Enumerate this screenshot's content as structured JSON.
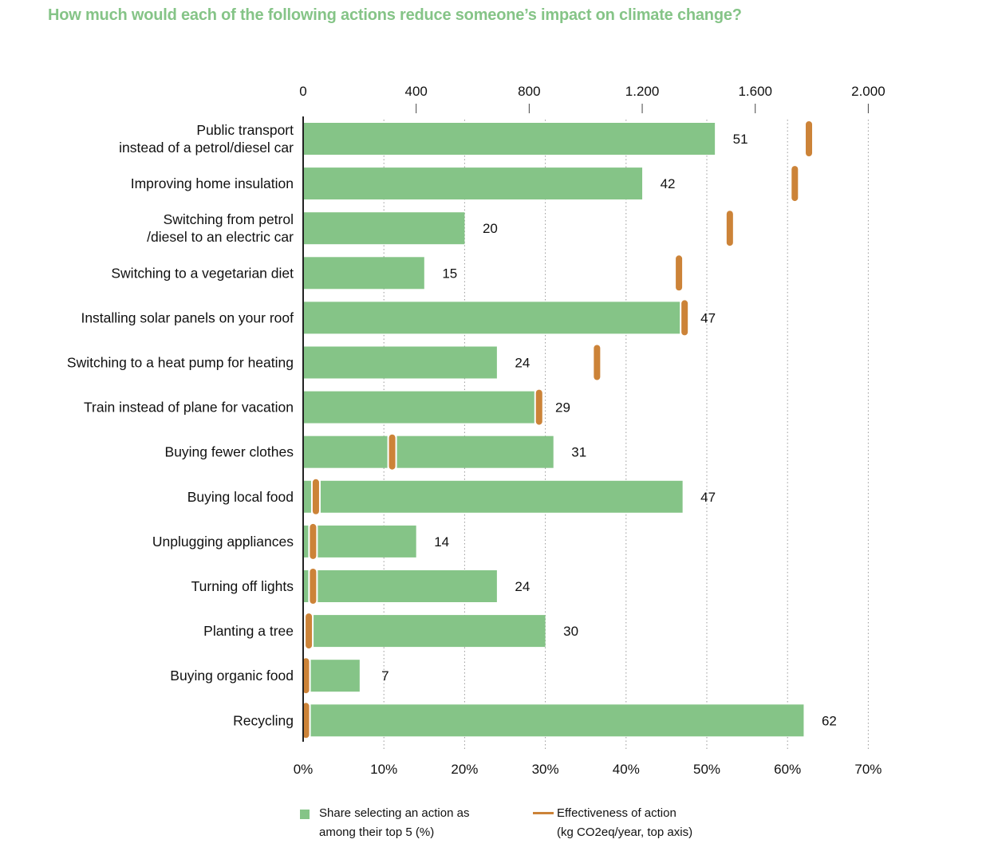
{
  "colors": {
    "bar": "#85c487",
    "marker": "#cc8338",
    "title": "#85c487",
    "grid": "#9a9a9a"
  },
  "chart_data": {
    "type": "bar",
    "orientation": "horizontal",
    "title": "How much would each of the following actions reduce someone’s impact on climate change?",
    "categories": [
      [
        "Public transport",
        "instead of a petrol/diesel car"
      ],
      [
        "Improving home insulation"
      ],
      [
        "Switching from petrol",
        "/diesel to an electric car"
      ],
      [
        "Switching to a vegetarian diet"
      ],
      [
        "Installing solar panels on your roof"
      ],
      [
        "Switching to a heat pump for heating"
      ],
      [
        "Train instead of plane for vacation"
      ],
      [
        "Buying fewer clothes"
      ],
      [
        "Buying local food"
      ],
      [
        "Unplugging appliances"
      ],
      [
        "Turning off lights"
      ],
      [
        "Planting a tree"
      ],
      [
        "Buying organic food"
      ],
      [
        "Recycling"
      ]
    ],
    "series": [
      {
        "name": "Share selecting an action as among their top 5 (%)",
        "axis": "bottom",
        "values": [
          51,
          42,
          20,
          15,
          47,
          24,
          29,
          31,
          47,
          14,
          24,
          30,
          7,
          62
        ]
      },
      {
        "name": "Effectiveness of action (kg CO2eq/year, top axis)",
        "axis": "top",
        "values": [
          1790,
          1740,
          1510,
          1330,
          1350,
          1040,
          835,
          315,
          45,
          35,
          35,
          20,
          10,
          10
        ]
      }
    ],
    "top_axis": {
      "range": [
        0,
        2000
      ],
      "ticks": [
        0,
        400,
        800,
        1200,
        1600,
        2000
      ],
      "tick_labels": [
        "0",
        "400",
        "800",
        "1.200",
        "1.600",
        "2.000"
      ]
    },
    "bottom_axis": {
      "range": [
        0,
        70
      ],
      "ticks": [
        0,
        10,
        20,
        30,
        40,
        50,
        60,
        70
      ],
      "tick_labels": [
        "0%",
        "10%",
        "20%",
        "30%",
        "40%",
        "50%",
        "60%",
        "70%"
      ]
    },
    "grid": true,
    "legend": {
      "bar_line1": "Share selecting an action as",
      "bar_line2": "among their top 5 (%)",
      "marker_line1": "Effectiveness of action",
      "marker_line2": "(kg CO2eq/year, top axis)"
    }
  }
}
